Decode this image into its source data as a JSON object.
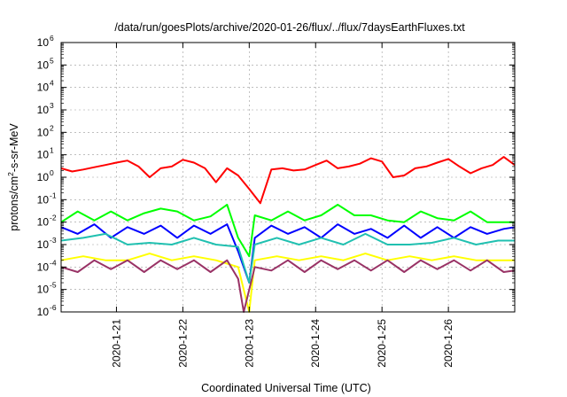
{
  "chart_data": {
    "type": "line",
    "title": "/data/run/goesPlots/archive/2020-01-26/flux/../flux/7daysEarthFluxes.txt",
    "xlabel": "Coordinated Universal Time (UTC)",
    "ylabel": {
      "base": "protons/cm",
      "sup": "2",
      "rest": "-s-sr-MeV"
    },
    "yscale": "log",
    "ylim_exp": [
      -6,
      6
    ],
    "ytick_exponents": [
      -6,
      -5,
      -4,
      -3,
      -2,
      -1,
      0,
      1,
      2,
      3,
      4,
      5,
      6
    ],
    "ytick_base": "10",
    "xlim": [
      "2020-01-20T04:00",
      "2020-01-26T23:59"
    ],
    "xticks": [
      "2020-1-21",
      "2020-1-22",
      "2020-1-23",
      "2020-1-24",
      "2020-1-25",
      "2020-1-26"
    ],
    "xtick_values": [
      "2020-01-21",
      "2020-01-22",
      "2020-01-23",
      "2020-01-24",
      "2020-01-25",
      "2020-01-26"
    ],
    "grid": true,
    "series": [
      {
        "color": "#ff0000",
        "x": [
          "2020-01-20T04:00",
          "2020-01-20T08:00",
          "2020-01-20T12:00",
          "2020-01-20T16:00",
          "2020-01-20T20:00",
          "2020-01-21T00:00",
          "2020-01-21T04:00",
          "2020-01-21T08:00",
          "2020-01-21T12:00",
          "2020-01-21T16:00",
          "2020-01-21T20:00",
          "2020-01-22T00:00",
          "2020-01-22T04:00",
          "2020-01-22T08:00",
          "2020-01-22T12:00",
          "2020-01-22T16:00",
          "2020-01-22T20:00",
          "2020-01-23T00:00",
          "2020-01-23T04:00",
          "2020-01-23T08:00",
          "2020-01-23T12:00",
          "2020-01-23T16:00",
          "2020-01-23T20:00",
          "2020-01-24T00:00",
          "2020-01-24T04:00",
          "2020-01-24T08:00",
          "2020-01-24T12:00",
          "2020-01-24T16:00",
          "2020-01-24T20:00",
          "2020-01-25T00:00",
          "2020-01-25T04:00",
          "2020-01-25T08:00",
          "2020-01-25T12:00",
          "2020-01-25T16:00",
          "2020-01-25T20:00",
          "2020-01-26T00:00",
          "2020-01-26T04:00",
          "2020-01-26T08:00",
          "2020-01-26T12:00",
          "2020-01-26T16:00",
          "2020-01-26T20:00",
          "2020-01-26T23:59"
        ],
        "y": [
          2.5,
          1.8,
          2.2,
          2.8,
          3.5,
          4.5,
          5.5,
          3.0,
          1.0,
          2.5,
          3.0,
          6.0,
          4.5,
          2.5,
          0.6,
          2.5,
          1.2,
          0.3,
          0.07,
          2.2,
          2.5,
          2.0,
          2.2,
          3.5,
          5.5,
          2.5,
          3.0,
          4.0,
          7.0,
          5.0,
          1.0,
          1.2,
          2.5,
          3.0,
          4.5,
          6.5,
          3.0,
          1.5,
          2.5,
          3.5,
          8.0,
          3.5
        ]
      },
      {
        "color": "#00ff00",
        "x": [
          "2020-01-20T04:00",
          "2020-01-20T10:00",
          "2020-01-20T16:00",
          "2020-01-20T22:00",
          "2020-01-21T04:00",
          "2020-01-21T10:00",
          "2020-01-21T16:00",
          "2020-01-21T22:00",
          "2020-01-22T04:00",
          "2020-01-22T10:00",
          "2020-01-22T16:00",
          "2020-01-22T20:00",
          "2020-01-23T00:00",
          "2020-01-23T02:00",
          "2020-01-23T08:00",
          "2020-01-23T14:00",
          "2020-01-23T20:00",
          "2020-01-24T02:00",
          "2020-01-24T08:00",
          "2020-01-24T14:00",
          "2020-01-24T20:00",
          "2020-01-25T02:00",
          "2020-01-25T08:00",
          "2020-01-25T14:00",
          "2020-01-25T20:00",
          "2020-01-26T02:00",
          "2020-01-26T08:00",
          "2020-01-26T14:00",
          "2020-01-26T20:00",
          "2020-01-26T23:59"
        ],
        "y": [
          0.01,
          0.03,
          0.012,
          0.03,
          0.012,
          0.025,
          0.04,
          0.03,
          0.012,
          0.018,
          0.06,
          0.002,
          0.0003,
          0.02,
          0.012,
          0.03,
          0.012,
          0.02,
          0.06,
          0.02,
          0.02,
          0.012,
          0.01,
          0.03,
          0.015,
          0.012,
          0.03,
          0.01,
          0.01,
          0.01
        ]
      },
      {
        "color": "#0000ff",
        "x": [
          "2020-01-20T04:00",
          "2020-01-20T10:00",
          "2020-01-20T16:00",
          "2020-01-20T22:00",
          "2020-01-21T04:00",
          "2020-01-21T10:00",
          "2020-01-21T16:00",
          "2020-01-21T22:00",
          "2020-01-22T04:00",
          "2020-01-22T10:00",
          "2020-01-22T16:00",
          "2020-01-22T20:00",
          "2020-01-23T00:00",
          "2020-01-23T02:00",
          "2020-01-23T08:00",
          "2020-01-23T14:00",
          "2020-01-23T20:00",
          "2020-01-24T02:00",
          "2020-01-24T08:00",
          "2020-01-24T14:00",
          "2020-01-24T20:00",
          "2020-01-25T02:00",
          "2020-01-25T08:00",
          "2020-01-25T14:00",
          "2020-01-25T20:00",
          "2020-01-26T02:00",
          "2020-01-26T08:00",
          "2020-01-26T14:00",
          "2020-01-26T20:00",
          "2020-01-26T23:59"
        ],
        "y": [
          0.006,
          0.003,
          0.008,
          0.002,
          0.006,
          0.003,
          0.007,
          0.002,
          0.007,
          0.003,
          0.008,
          0.0005,
          2e-05,
          0.002,
          0.007,
          0.003,
          0.006,
          0.002,
          0.008,
          0.003,
          0.005,
          0.002,
          0.007,
          0.002,
          0.006,
          0.002,
          0.006,
          0.003,
          0.005,
          0.006
        ]
      },
      {
        "color": "#20c0b0",
        "x": [
          "2020-01-20T04:00",
          "2020-01-20T12:00",
          "2020-01-20T20:00",
          "2020-01-21T04:00",
          "2020-01-21T12:00",
          "2020-01-21T20:00",
          "2020-01-22T04:00",
          "2020-01-22T12:00",
          "2020-01-22T20:00",
          "2020-01-23T00:00",
          "2020-01-23T02:00",
          "2020-01-23T10:00",
          "2020-01-23T18:00",
          "2020-01-24T02:00",
          "2020-01-24T10:00",
          "2020-01-24T18:00",
          "2020-01-25T02:00",
          "2020-01-25T10:00",
          "2020-01-25T18:00",
          "2020-01-26T02:00",
          "2020-01-26T10:00",
          "2020-01-26T18:00",
          "2020-01-26T23:59"
        ],
        "y": [
          0.0015,
          0.002,
          0.003,
          0.001,
          0.0012,
          0.001,
          0.002,
          0.001,
          0.0008,
          2e-05,
          0.001,
          0.002,
          0.001,
          0.002,
          0.001,
          0.003,
          0.001,
          0.001,
          0.0012,
          0.002,
          0.001,
          0.0015,
          0.0015
        ]
      },
      {
        "color": "#ffff00",
        "x": [
          "2020-01-20T04:00",
          "2020-01-20T12:00",
          "2020-01-20T20:00",
          "2020-01-21T04:00",
          "2020-01-21T12:00",
          "2020-01-21T20:00",
          "2020-01-22T04:00",
          "2020-01-22T12:00",
          "2020-01-22T20:00",
          "2020-01-23T00:00",
          "2020-01-23T02:00",
          "2020-01-23T10:00",
          "2020-01-23T18:00",
          "2020-01-24T02:00",
          "2020-01-24T10:00",
          "2020-01-24T18:00",
          "2020-01-25T02:00",
          "2020-01-25T10:00",
          "2020-01-25T18:00",
          "2020-01-26T02:00",
          "2020-01-26T10:00",
          "2020-01-26T18:00",
          "2020-01-26T23:59"
        ],
        "y": [
          0.0002,
          0.0003,
          0.0002,
          0.0002,
          0.0004,
          0.0002,
          0.0003,
          0.0002,
          0.0001,
          1e-06,
          0.0002,
          0.0003,
          0.0002,
          0.0003,
          0.0002,
          0.0004,
          0.0002,
          0.0003,
          0.0002,
          0.0003,
          0.0002,
          0.0002,
          0.0002
        ]
      },
      {
        "color": "#993366",
        "x": [
          "2020-01-20T04:00",
          "2020-01-20T10:00",
          "2020-01-20T16:00",
          "2020-01-20T22:00",
          "2020-01-21T04:00",
          "2020-01-21T10:00",
          "2020-01-21T16:00",
          "2020-01-21T22:00",
          "2020-01-22T04:00",
          "2020-01-22T10:00",
          "2020-01-22T16:00",
          "2020-01-22T20:00",
          "2020-01-22T22:00",
          "2020-01-23T02:00",
          "2020-01-23T08:00",
          "2020-01-23T14:00",
          "2020-01-23T20:00",
          "2020-01-24T02:00",
          "2020-01-24T08:00",
          "2020-01-24T14:00",
          "2020-01-24T20:00",
          "2020-01-25T02:00",
          "2020-01-25T08:00",
          "2020-01-25T14:00",
          "2020-01-25T20:00",
          "2020-01-26T02:00",
          "2020-01-26T08:00",
          "2020-01-26T14:00",
          "2020-01-26T20:00",
          "2020-01-26T23:59"
        ],
        "y": [
          0.0001,
          6e-05,
          0.0002,
          8e-05,
          0.0002,
          6e-05,
          0.0002,
          8e-05,
          0.0002,
          6e-05,
          0.0002,
          3e-05,
          1e-06,
          0.0001,
          7e-05,
          0.0002,
          6e-05,
          0.0002,
          8e-05,
          0.0002,
          7e-05,
          0.0002,
          6e-05,
          0.0002,
          8e-05,
          0.0002,
          7e-05,
          0.0002,
          6e-05,
          7e-05
        ]
      }
    ]
  }
}
